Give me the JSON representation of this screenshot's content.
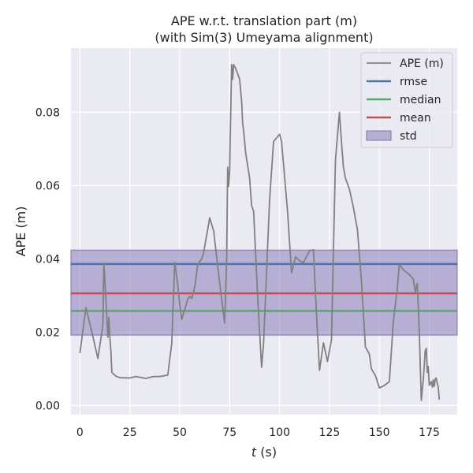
{
  "chart_data": {
    "type": "line",
    "title": "APE w.r.t. translation part (m)",
    "subtitle": "(with Sim(3) Umeyama alignment)",
    "xlabel_italic": "t",
    "xlabel_rest": " (s)",
    "ylabel": "APE (m)",
    "xlim": [
      -4.5,
      189
    ],
    "ylim": [
      -0.0025,
      0.0975
    ],
    "xticks": [
      0,
      25,
      50,
      75,
      100,
      125,
      150,
      175
    ],
    "yticks": [
      0.0,
      0.02,
      0.04,
      0.06,
      0.08
    ],
    "ytick_labels": [
      "0.00",
      "0.02",
      "0.04",
      "0.06",
      "0.08"
    ],
    "grid": true,
    "legend_position": "top-right",
    "colors": {
      "background": "#eaeaf2",
      "grid": "#ffffff",
      "ape": "#808080",
      "rmse": "#4c72b0",
      "median": "#55a868",
      "mean": "#c44e52",
      "std": "#8172b3"
    },
    "legend": [
      "APE (m)",
      "rmse",
      "median",
      "mean",
      "std"
    ],
    "stats": {
      "rmse": 0.0386,
      "median": 0.0258,
      "mean": 0.0306,
      "std_low": 0.0192,
      "std_high": 0.0424
    },
    "series": [
      {
        "name": "APE (m)",
        "x": [
          0,
          3,
          6,
          9,
          11.5,
          12,
          12.5,
          14,
          14.5,
          15,
          15.5,
          16,
          18,
          20,
          25,
          28,
          33,
          37,
          40,
          44,
          46,
          47.5,
          49,
          50,
          51,
          54,
          55,
          56,
          57,
          58,
          59,
          61,
          62,
          63,
          64,
          65,
          67,
          69,
          71,
          72.5,
          73.5,
          74,
          74.5,
          75,
          75.5,
          76,
          76.5,
          77,
          78,
          80,
          81,
          81.5,
          82,
          83,
          85,
          86,
          87,
          89,
          91,
          92,
          95,
          97,
          100,
          101,
          104,
          106,
          108,
          110,
          112,
          115,
          117,
          118,
          120,
          122,
          123,
          124,
          126,
          128,
          130,
          131,
          132,
          133,
          135,
          137,
          139,
          141,
          143,
          145,
          146,
          148,
          150,
          152,
          155,
          157,
          159,
          160,
          162,
          165,
          167,
          168,
          169,
          170,
          171,
          172,
          173,
          173.5,
          174,
          174.5,
          175,
          176,
          176.5,
          177,
          177.5,
          178,
          178.5,
          179,
          179.5,
          180
        ],
        "y": [
          0.0143,
          0.0267,
          0.02,
          0.0128,
          0.022,
          0.0388,
          0.034,
          0.0186,
          0.024,
          0.0185,
          0.015,
          0.009,
          0.008,
          0.0076,
          0.0075,
          0.0079,
          0.0074,
          0.0079,
          0.0079,
          0.0083,
          0.017,
          0.039,
          0.033,
          0.0275,
          0.0235,
          0.029,
          0.0298,
          0.0292,
          0.031,
          0.034,
          0.0385,
          0.04,
          0.0418,
          0.045,
          0.048,
          0.0512,
          0.0476,
          0.038,
          0.029,
          0.0225,
          0.04,
          0.065,
          0.0598,
          0.064,
          0.079,
          0.093,
          0.089,
          0.093,
          0.092,
          0.089,
          0.083,
          0.077,
          0.075,
          0.069,
          0.062,
          0.0545,
          0.053,
          0.03,
          0.0104,
          0.017,
          0.056,
          0.072,
          0.074,
          0.072,
          0.053,
          0.0362,
          0.0405,
          0.0395,
          0.039,
          0.0422,
          0.0425,
          0.03,
          0.0096,
          0.0171,
          0.0145,
          0.012,
          0.018,
          0.067,
          0.08,
          0.072,
          0.065,
          0.062,
          0.059,
          0.054,
          0.048,
          0.034,
          0.016,
          0.014,
          0.01,
          0.0082,
          0.0048,
          0.0053,
          0.0065,
          0.023,
          0.032,
          0.0385,
          0.037,
          0.0357,
          0.0345,
          0.031,
          0.0333,
          0.02,
          0.0014,
          0.007,
          0.015,
          0.0156,
          0.009,
          0.0107,
          0.0055,
          0.0065,
          0.005,
          0.007,
          0.0052,
          0.0072,
          0.0075,
          0.006,
          0.005,
          0.0016
        ]
      }
    ]
  }
}
